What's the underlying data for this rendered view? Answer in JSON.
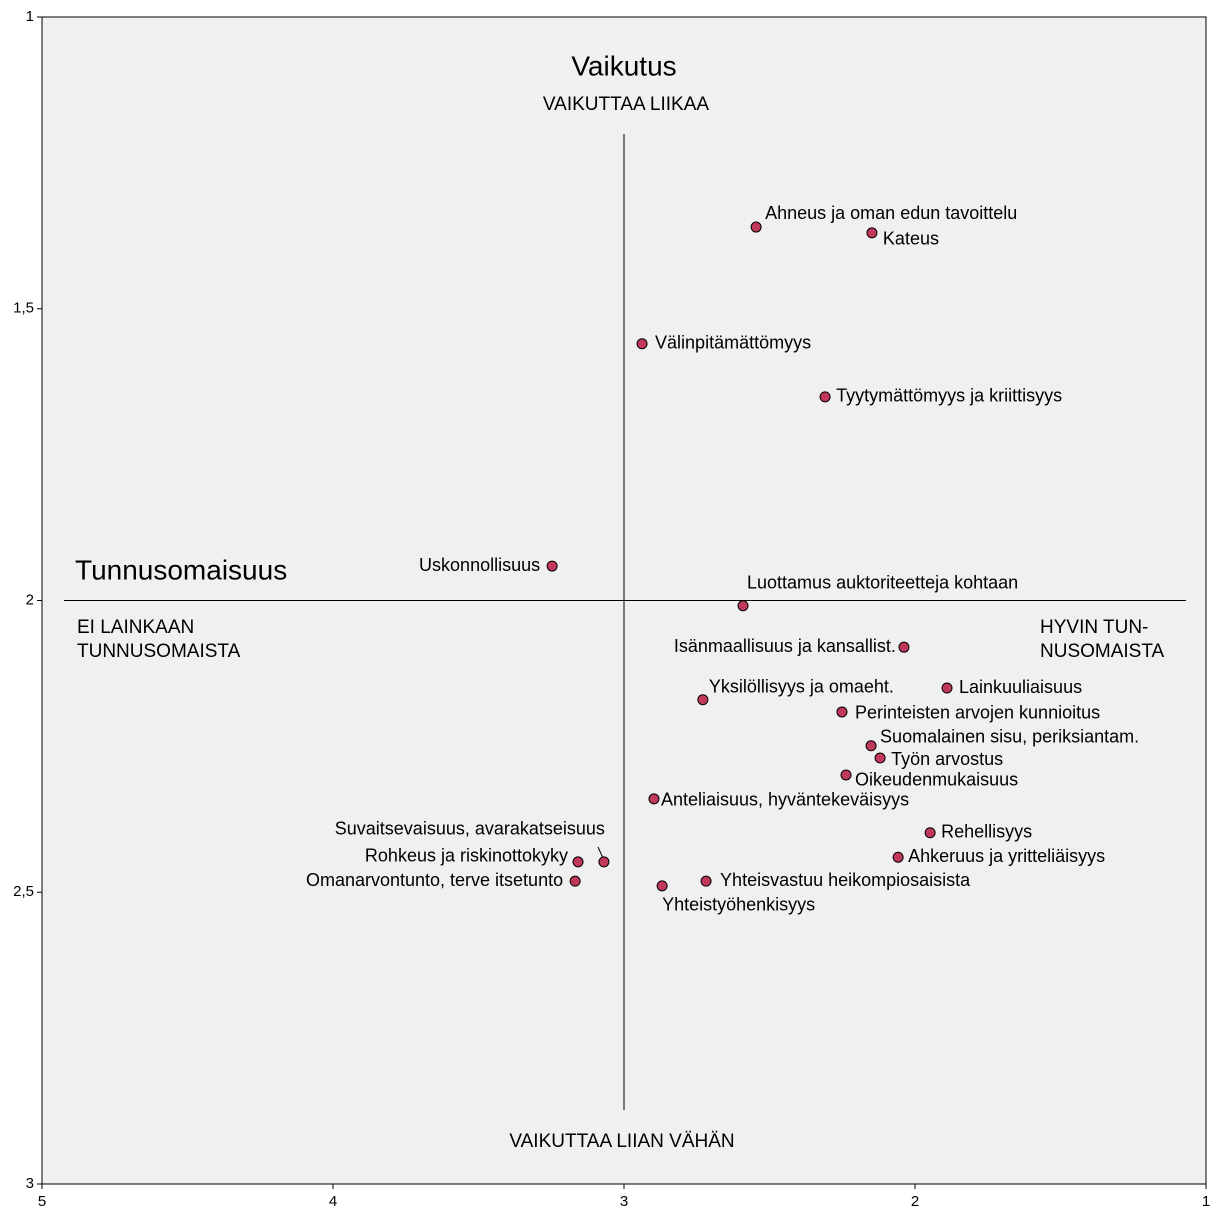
{
  "chart_data": {
    "type": "scatter",
    "title": "Vaikutus",
    "top_label": "VAIKUTTAA LIIKAA",
    "bottom_label": "VAIKUTTAA LIIAN VÄHÄN",
    "x_title": "Tunnusomaisuus",
    "left_label": [
      "EI LAINKAAN",
      "TUNNUSOMAISTA"
    ],
    "right_label": [
      "HYVIN TUN-",
      "NUSOMAISTA"
    ],
    "xlim": [
      5,
      1
    ],
    "ylim": [
      3,
      1
    ],
    "xticks": [
      5,
      4,
      3,
      2,
      1
    ],
    "yticks": [
      1,
      {
        "value": 1.5,
        "label": "1,5"
      },
      2,
      {
        "value": 2.5,
        "label": "2,5"
      },
      3
    ],
    "reference_x": 3,
    "reference_y": 2,
    "color": "#c0395a",
    "labels": [
      "Ahneus ja oman edun tavoittelu",
      "Kateus",
      "Välinpitämättömyys",
      "Tyytymättömyys ja kriittisyys",
      "Uskonnollisuus",
      "Luottamus auktoriteetteja kohtaan",
      "Isänmaallisuus ja kansallist.",
      "Lainkuuliaisuus",
      "Yksilöllisyys ja omaeht.",
      "Perinteisten arvojen kunnioitus",
      "Suomalainen sisu, periksiantam.",
      "Työn arvostus",
      "Oikeudenmukaisuus",
      "Anteliaisuus, hyväntekeväisyys",
      "Rehellisyys",
      "Ahkeruus ja yritteliäisyys",
      "Suvaitsevaisuus, avarakatseisuus",
      "Rohkeus ja riskinottokyky",
      "Omanarvontunto, terve itsetunto",
      "Yhteistyöhenkisyys",
      "Yhteisvastuu heikompiosaisista"
    ],
    "x": [
      2.546,
      2.148,
      2.938,
      2.309,
      3.247,
      2.591,
      2.038,
      1.89,
      2.729,
      2.251,
      2.151,
      2.12,
      2.237,
      2.897,
      1.948,
      2.058,
      3.069,
      3.158,
      3.168,
      2.869,
      2.718
    ],
    "y": [
      1.36,
      1.37,
      1.56,
      1.651,
      1.941,
      2.009,
      2.08,
      2.15,
      2.17,
      2.191,
      2.249,
      2.27,
      2.299,
      2.34,
      2.398,
      2.44,
      2.448,
      2.448,
      2.481,
      2.489,
      2.481
    ]
  }
}
